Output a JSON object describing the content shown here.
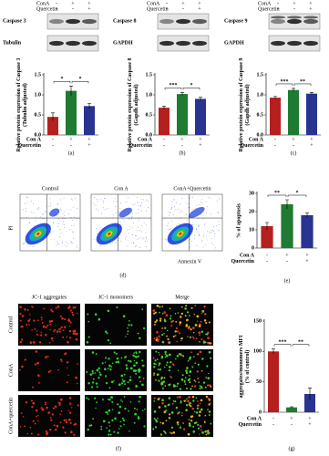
{
  "blots": [
    {
      "conditions": [
        {
          "name": "ConA",
          "values": [
            "-",
            "+",
            "+"
          ]
        },
        {
          "name": "Quercetin",
          "values": [
            "-",
            "-",
            "+"
          ]
        }
      ],
      "rows": [
        "Caspase 3",
        "Tubulin"
      ]
    },
    {
      "conditions": [
        {
          "name": "ConA",
          "values": [
            "-",
            "+",
            "+"
          ]
        },
        {
          "name": "Quercetin",
          "values": [
            "-",
            "-",
            "+"
          ]
        }
      ],
      "rows": [
        "Caspase 8",
        "GAPDH"
      ]
    },
    {
      "conditions": [
        {
          "name": "ConA",
          "values": [
            "-",
            "+",
            "+"
          ]
        },
        {
          "name": "Quercetin",
          "values": [
            "-",
            "-",
            "+"
          ]
        }
      ],
      "rows": [
        "Caspase 9",
        "GAPDH"
      ]
    }
  ],
  "flow": {
    "titles": [
      "Control",
      "Con A",
      "ConA+Quercetin"
    ],
    "ylabel": "PI",
    "xlabel": "Annexin V",
    "label": "(d)"
  },
  "fluorescence": {
    "columns": [
      "JC-1 aggregates",
      "JC-1 monomers",
      "Merge"
    ],
    "rows": [
      "Control",
      "ConA",
      "ConA+quercetin"
    ],
    "label": "(f)"
  },
  "chart_data": [
    {
      "type": "bar",
      "ylabel": [
        "Relative protein expression of Caspase 3",
        "(Tubulin adjusted)"
      ],
      "label": "(a)",
      "values": [
        0.45,
        1.1,
        0.72
      ],
      "errors": [
        0.1,
        0.12,
        0.07
      ],
      "colors": [
        "#b5201f",
        "#1f7a32",
        "#28348f"
      ],
      "conditions": [
        {
          "name": "Con A",
          "values": [
            "-",
            "+",
            "+"
          ]
        },
        {
          "name": "Quercetin",
          "values": [
            "-",
            "-",
            "+"
          ]
        }
      ],
      "significance": [
        "*",
        "*"
      ],
      "ylim": [
        0,
        1.5
      ],
      "yticks": [
        {
          "value": 0,
          "label": "0.0"
        },
        0.5,
        {
          "value": 1,
          "label": "1.0"
        },
        1.5
      ]
    },
    {
      "type": "bar",
      "ylabel": [
        "Relative protein expression of Caspase 8",
        "(Gapdh adjusted)"
      ],
      "label": "(b)",
      "values": [
        0.68,
        1.02,
        0.9
      ],
      "errors": [
        0.04,
        0.04,
        0.04
      ],
      "colors": [
        "#b5201f",
        "#1f7a32",
        "#28348f"
      ],
      "conditions": [
        {
          "name": "Con A",
          "values": [
            "-",
            "+",
            "+"
          ]
        },
        {
          "name": "Quercetin",
          "values": [
            "-",
            "-",
            "+"
          ]
        }
      ],
      "significance": [
        "***",
        "*"
      ],
      "ylim": [
        0,
        1.5
      ],
      "yticks": [
        {
          "value": 0,
          "label": "0.0"
        },
        0.5,
        {
          "value": 1,
          "label": "1.0"
        },
        1.5
      ]
    },
    {
      "type": "bar",
      "ylabel": [
        "Relative protein expression of Caspase 9",
        "(Gapdh adjusted)"
      ],
      "label": "(c)",
      "values": [
        0.93,
        1.12,
        1.03
      ],
      "errors": [
        0.03,
        0.04,
        0.03
      ],
      "colors": [
        "#b5201f",
        "#1f7a32",
        "#28348f"
      ],
      "conditions": [
        {
          "name": "Con A",
          "values": [
            "-",
            "+",
            "+"
          ]
        },
        {
          "name": "Quercetin",
          "values": [
            "-",
            "-",
            "+"
          ]
        }
      ],
      "significance": [
        "***",
        "**"
      ],
      "ylim": [
        0,
        1.5
      ],
      "yticks": [
        {
          "value": 0,
          "label": "0.0"
        },
        0.5,
        {
          "value": 1,
          "label": "1.0"
        },
        1.5
      ]
    },
    {
      "type": "bar",
      "ylabel": [
        "% of apoptosis"
      ],
      "label": "(e)",
      "values": [
        12,
        24,
        18
      ],
      "errors": [
        2,
        2.5,
        1.2
      ],
      "colors": [
        "#b5201f",
        "#1f7a32",
        "#28348f"
      ],
      "conditions": [
        {
          "name": "Con A",
          "values": [
            "-",
            "+",
            "+"
          ]
        },
        {
          "name": "Quercetin",
          "values": [
            "-",
            "-",
            "+"
          ]
        }
      ],
      "significance": [
        "**",
        "*"
      ],
      "ylim": [
        0,
        30
      ],
      "yticks": [
        0,
        10,
        20,
        30
      ]
    },
    {
      "type": "bar",
      "ylabel": [
        "aggregates/monomers MFI",
        "(% of control)"
      ],
      "label": "(g)",
      "values": [
        100,
        8,
        30
      ],
      "errors": [
        4,
        1,
        10
      ],
      "colors": [
        "#b5201f",
        "#1f7a32",
        "#28348f"
      ],
      "conditions": [
        {
          "name": "Con A",
          "values": [
            "-",
            "+",
            "+"
          ]
        },
        {
          "name": "Quercetin",
          "values": [
            "-",
            "-",
            "+"
          ]
        }
      ],
      "significance": [
        "***",
        "**"
      ],
      "ylim": [
        0,
        150
      ],
      "yticks": [
        0,
        50,
        100,
        150
      ]
    }
  ]
}
